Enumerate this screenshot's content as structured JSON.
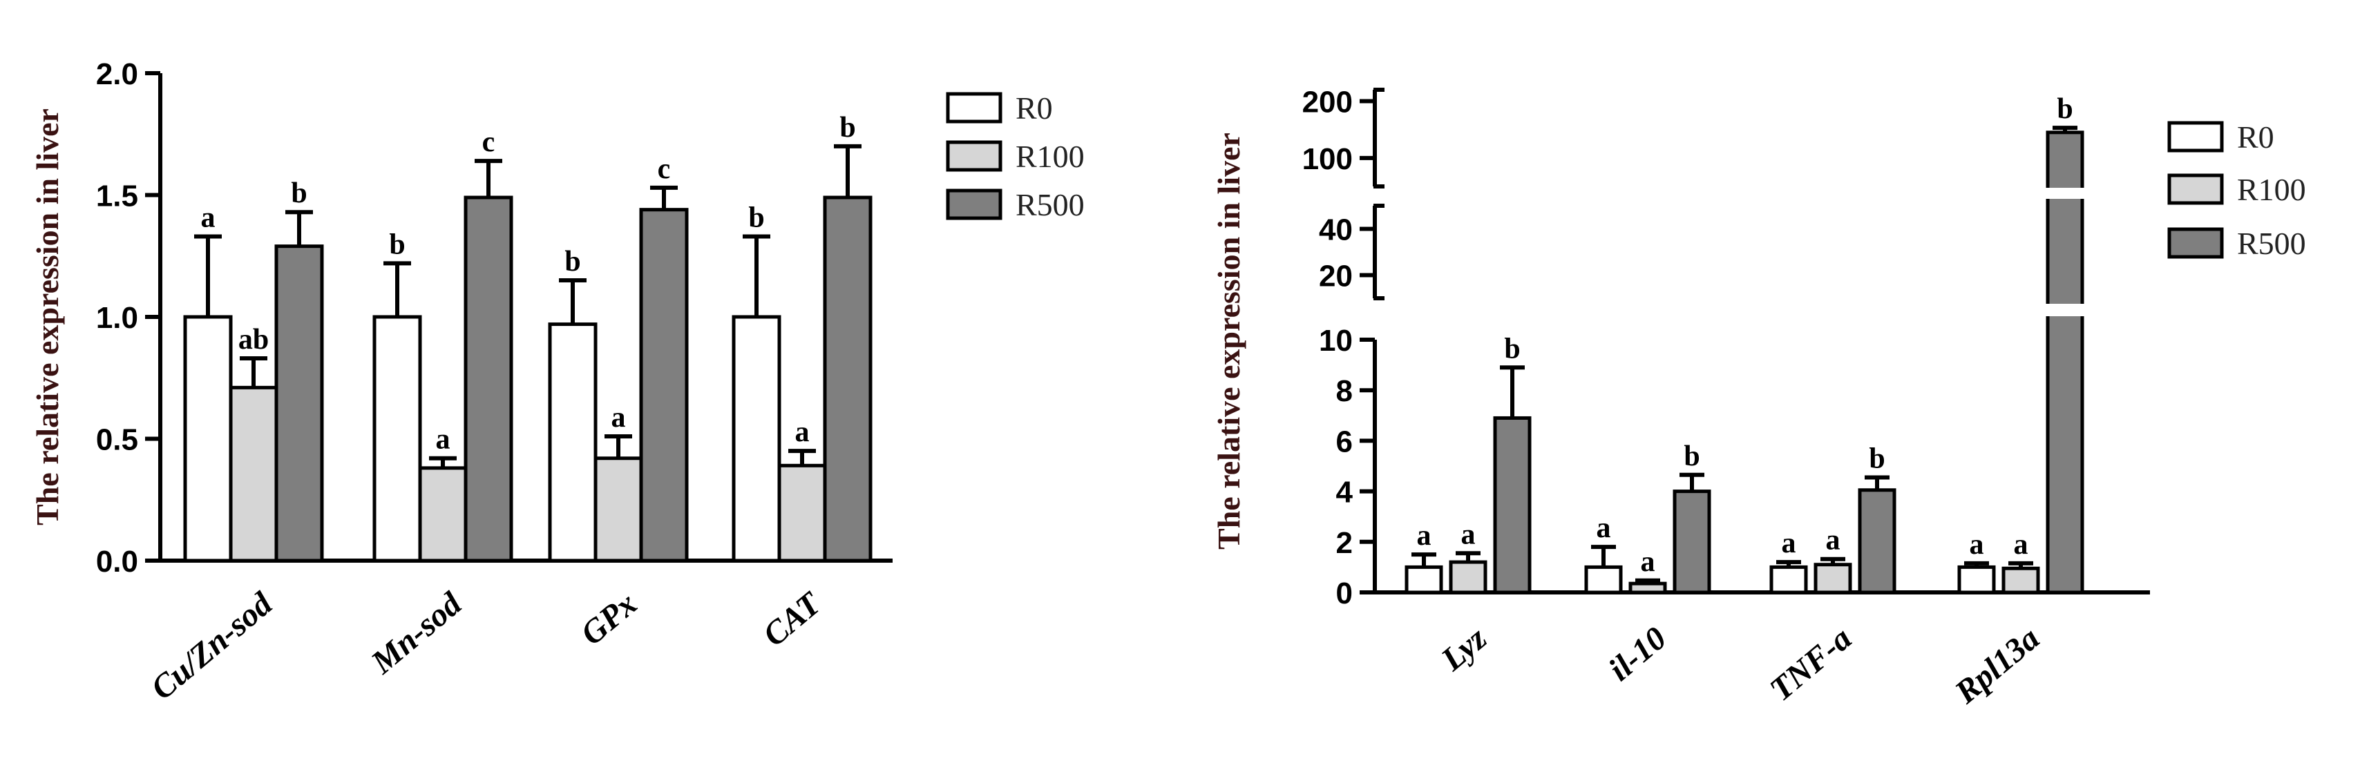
{
  "colors": {
    "R0": "#ffffff",
    "R100": "#d6d6d6",
    "R500": "#7f7f7f",
    "stroke": "#000000",
    "label": "#3a1212"
  },
  "chart_data": [
    {
      "type": "bar",
      "ylabel": "The relative expression in liver",
      "categories": [
        "Cu/Zn-sod",
        "Mn-sod",
        "GPx",
        "CAT"
      ],
      "ylim": [
        0,
        2.0
      ],
      "yticks": [
        "0.0",
        "0.5",
        "1.0",
        "1.5",
        "2.0"
      ],
      "legend_position": "right",
      "series": [
        {
          "name": "R0",
          "values": [
            1.0,
            1.0,
            0.97,
            1.0
          ],
          "errors": [
            0.33,
            0.22,
            0.18,
            0.33
          ],
          "letters": [
            "a",
            "b",
            "b",
            "b"
          ]
        },
        {
          "name": "R100",
          "values": [
            0.71,
            0.38,
            0.42,
            0.39
          ],
          "errors": [
            0.12,
            0.04,
            0.09,
            0.06
          ],
          "letters": [
            "ab",
            "a",
            "a",
            "a"
          ]
        },
        {
          "name": "R500",
          "values": [
            1.29,
            1.49,
            1.44,
            1.49
          ],
          "errors": [
            0.14,
            0.15,
            0.09,
            0.21
          ],
          "letters": [
            "b",
            "c",
            "c",
            "b"
          ]
        }
      ]
    },
    {
      "type": "bar",
      "ylabel": "The relative expression in liver",
      "categories": [
        "Lyz",
        "il-10",
        "TNF-a",
        "Rpl13a"
      ],
      "broken_axis": true,
      "yticks_lower": [
        "0",
        "2",
        "4",
        "6",
        "8",
        "10"
      ],
      "yticks_middle": [
        "20",
        "40"
      ],
      "yticks_upper": [
        "100",
        "200"
      ],
      "legend_position": "right",
      "series": [
        {
          "name": "R0",
          "values": [
            1.0,
            1.0,
            1.0,
            1.0
          ],
          "errors": [
            0.5,
            0.8,
            0.2,
            0.15
          ],
          "letters": [
            "a",
            "a",
            "a",
            "a"
          ]
        },
        {
          "name": "R100",
          "values": [
            1.2,
            0.35,
            1.1,
            0.95
          ],
          "errors": [
            0.35,
            0.12,
            0.22,
            0.2
          ],
          "letters": [
            "a",
            "a",
            "a",
            "a"
          ]
        },
        {
          "name": "R500",
          "values": [
            6.9,
            4.0,
            4.05,
            145
          ],
          "errors": [
            2.0,
            0.65,
            0.5,
            8
          ],
          "letters": [
            "b",
            "b",
            "b",
            "b"
          ]
        }
      ]
    }
  ]
}
